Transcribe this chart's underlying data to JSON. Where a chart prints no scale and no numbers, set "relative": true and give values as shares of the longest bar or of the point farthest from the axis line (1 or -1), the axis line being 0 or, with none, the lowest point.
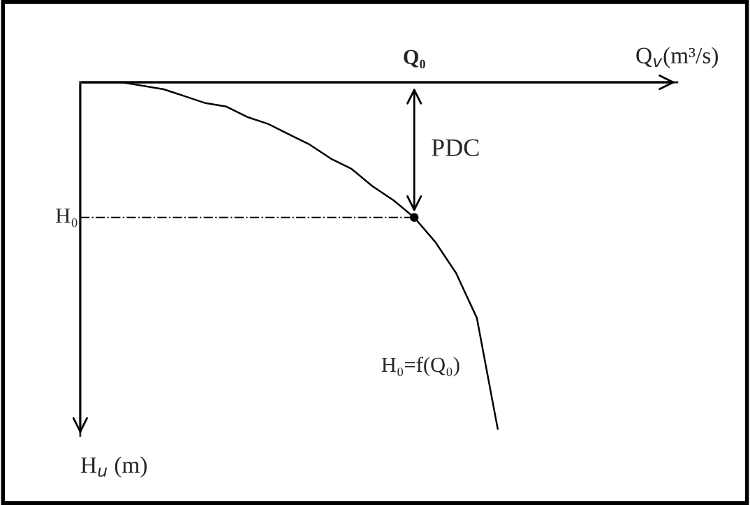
{
  "chart_data": {
    "type": "line",
    "relative": true,
    "grid": false,
    "legend": false,
    "categories": [
      null,
      null,
      null,
      null,
      null,
      null,
      null,
      null,
      null,
      null,
      null,
      null,
      null,
      null,
      null,
      null,
      null,
      null,
      null,
      null,
      null
    ],
    "series": [
      {
        "color": "#000000",
        "marker": "none",
        "values": [
          0,
          0,
          0,
          -0.01,
          -0.02,
          -0.04,
          -0.06,
          -0.07,
          -0.1,
          -0.12,
          -0.15,
          -0.18,
          -0.22,
          -0.25,
          -0.3,
          -0.34,
          -0.39,
          -0.46,
          -0.55,
          -0.68,
          -1
        ]
      }
    ],
    "ref_lines": [
      {
        "axis": "y",
        "value": -0.39,
        "label": "H₀",
        "color": "#000000",
        "line_style": "dashed"
      }
    ],
    "annotations": [
      "Q$_{v}$(m³/s)",
      "H$_{u}$ (m)",
      "Q₀",
      "PDC",
      "H₀=f(Q₀)"
    ]
  }
}
